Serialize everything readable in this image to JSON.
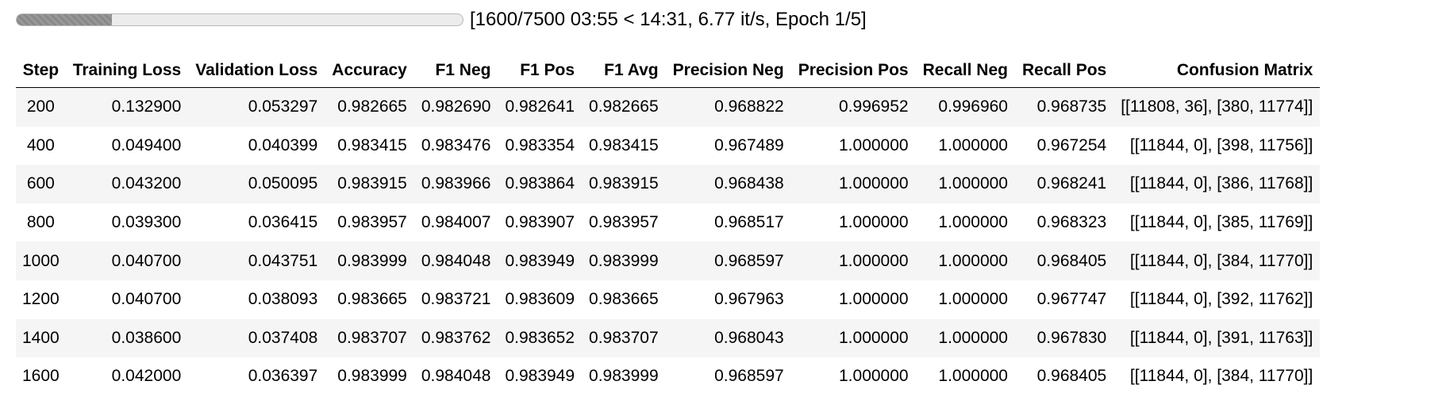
{
  "progress": {
    "fraction": 0.2133,
    "status_text": "[1600/7500 03:55 < 14:31, 6.77 it/s, Epoch 1/5]"
  },
  "table": {
    "headers": [
      "Step",
      "Training Loss",
      "Validation Loss",
      "Accuracy",
      "F1 Neg",
      "F1 Pos",
      "F1 Avg",
      "Precision Neg",
      "Precision Pos",
      "Recall Neg",
      "Recall Pos",
      "Confusion Matrix"
    ],
    "rows": [
      [
        "200",
        "0.132900",
        "0.053297",
        "0.982665",
        "0.982690",
        "0.982641",
        "0.982665",
        "0.968822",
        "0.996952",
        "0.996960",
        "0.968735",
        "[[11808, 36], [380, 11774]]"
      ],
      [
        "400",
        "0.049400",
        "0.040399",
        "0.983415",
        "0.983476",
        "0.983354",
        "0.983415",
        "0.967489",
        "1.000000",
        "1.000000",
        "0.967254",
        "[[11844, 0], [398, 11756]]"
      ],
      [
        "600",
        "0.043200",
        "0.050095",
        "0.983915",
        "0.983966",
        "0.983864",
        "0.983915",
        "0.968438",
        "1.000000",
        "1.000000",
        "0.968241",
        "[[11844, 0], [386, 11768]]"
      ],
      [
        "800",
        "0.039300",
        "0.036415",
        "0.983957",
        "0.984007",
        "0.983907",
        "0.983957",
        "0.968517",
        "1.000000",
        "1.000000",
        "0.968323",
        "[[11844, 0], [385, 11769]]"
      ],
      [
        "1000",
        "0.040700",
        "0.043751",
        "0.983999",
        "0.984048",
        "0.983949",
        "0.983999",
        "0.968597",
        "1.000000",
        "1.000000",
        "0.968405",
        "[[11844, 0], [384, 11770]]"
      ],
      [
        "1200",
        "0.040700",
        "0.038093",
        "0.983665",
        "0.983721",
        "0.983609",
        "0.983665",
        "0.967963",
        "1.000000",
        "1.000000",
        "0.967747",
        "[[11844, 0], [392, 11762]]"
      ],
      [
        "1400",
        "0.038600",
        "0.037408",
        "0.983707",
        "0.983762",
        "0.983652",
        "0.983707",
        "0.968043",
        "1.000000",
        "1.000000",
        "0.967830",
        "[[11844, 0], [391, 11763]]"
      ],
      [
        "1600",
        "0.042000",
        "0.036397",
        "0.983999",
        "0.984048",
        "0.983949",
        "0.983999",
        "0.968597",
        "1.000000",
        "1.000000",
        "0.968405",
        "[[11844, 0], [384, 11770]]"
      ]
    ]
  }
}
